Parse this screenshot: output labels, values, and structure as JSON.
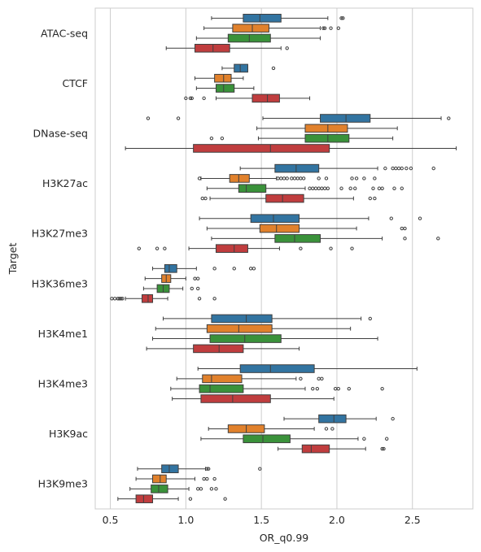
{
  "chart_data": {
    "type": "boxplot",
    "orientation": "horizontal",
    "xlabel": "OR_q0.99",
    "ylabel": "Target",
    "xlim": [
      0.4,
      2.9
    ],
    "xticks": [
      0.5,
      1.0,
      1.5,
      2.0,
      2.5
    ],
    "xtick_labels": [
      "0.5",
      "1.0",
      "1.5",
      "2.0",
      "2.5"
    ],
    "grid": "vertical",
    "legend": "none",
    "series_colors": [
      "#3274a1",
      "#e1812c",
      "#3a923a",
      "#c03d3e"
    ],
    "categories": [
      "ATAC-seq",
      "CTCF",
      "DNase-seq",
      "H3K27ac",
      "H3K27me3",
      "H3K36me3",
      "H3K4me1",
      "H3K4me3",
      "H3K9ac",
      "H3K9me3"
    ],
    "boxes": [
      [
        {
          "whislo": 1.17,
          "q1": 1.38,
          "med": 1.49,
          "q3": 1.63,
          "whishi": 1.94,
          "fliers": [
            2.03,
            2.04
          ]
        },
        {
          "whislo": 1.12,
          "q1": 1.31,
          "med": 1.44,
          "q3": 1.55,
          "whishi": 1.89,
          "fliers": [
            1.91,
            1.92,
            1.96,
            2.01
          ]
        },
        {
          "whislo": 1.07,
          "q1": 1.28,
          "med": 1.42,
          "q3": 1.56,
          "whishi": 1.89,
          "fliers": []
        },
        {
          "whislo": 0.87,
          "q1": 1.06,
          "med": 1.18,
          "q3": 1.29,
          "whishi": 1.63,
          "fliers": [
            1.67
          ]
        }
      ],
      [
        {
          "whislo": 1.24,
          "q1": 1.32,
          "med": 1.36,
          "q3": 1.41,
          "whishi": 1.41,
          "fliers": [
            1.58
          ]
        },
        {
          "whislo": 1.06,
          "q1": 1.19,
          "med": 1.25,
          "q3": 1.3,
          "whishi": 1.38,
          "fliers": []
        },
        {
          "whislo": 1.07,
          "q1": 1.2,
          "med": 1.25,
          "q3": 1.32,
          "whishi": 1.45,
          "fliers": []
        },
        {
          "whislo": 1.2,
          "q1": 1.44,
          "med": 1.54,
          "q3": 1.62,
          "whishi": 1.82,
          "fliers": [
            1.0,
            1.03,
            1.04,
            1.12
          ]
        }
      ],
      [
        {
          "whislo": 1.51,
          "q1": 1.89,
          "med": 2.06,
          "q3": 2.22,
          "whishi": 2.69,
          "fliers": [
            0.75,
            0.95,
            2.74
          ]
        },
        {
          "whislo": 1.47,
          "q1": 1.79,
          "med": 1.94,
          "q3": 2.07,
          "whishi": 2.4,
          "fliers": []
        },
        {
          "whislo": 1.48,
          "q1": 1.79,
          "med": 1.94,
          "q3": 2.08,
          "whishi": 2.37,
          "fliers": [
            1.17,
            1.24
          ]
        },
        {
          "whislo": 0.6,
          "q1": 1.05,
          "med": 1.56,
          "q3": 1.95,
          "whishi": 2.79,
          "fliers": []
        }
      ],
      [
        {
          "whislo": 1.36,
          "q1": 1.59,
          "med": 1.73,
          "q3": 1.88,
          "whishi": 2.27,
          "fliers": [
            2.32,
            2.37,
            2.39,
            2.41,
            2.43,
            2.46,
            2.49,
            2.64
          ]
        },
        {
          "whislo": 1.1,
          "q1": 1.29,
          "med": 1.35,
          "q3": 1.42,
          "whishi": 1.6,
          "fliers": [
            1.09,
            1.61,
            1.63,
            1.65,
            1.67,
            1.7,
            1.72,
            1.74,
            1.76,
            1.78,
            1.88,
            1.93,
            2.1,
            2.13,
            2.18,
            2.25
          ]
        },
        {
          "whislo": 1.14,
          "q1": 1.35,
          "med": 1.4,
          "q3": 1.53,
          "whishi": 1.79,
          "fliers": [
            1.82,
            1.84,
            1.86,
            1.88,
            1.9,
            1.92,
            1.94,
            2.03,
            2.09,
            2.12,
            2.24,
            2.28,
            2.3,
            2.38,
            2.43
          ]
        },
        {
          "whislo": 1.16,
          "q1": 1.53,
          "med": 1.64,
          "q3": 1.78,
          "whishi": 2.11,
          "fliers": [
            1.11,
            1.13,
            2.22,
            2.25
          ]
        }
      ],
      [
        {
          "whislo": 1.09,
          "q1": 1.43,
          "med": 1.58,
          "q3": 1.75,
          "whishi": 2.21,
          "fliers": [
            2.36,
            2.55
          ]
        },
        {
          "whislo": 1.14,
          "q1": 1.49,
          "med": 1.6,
          "q3": 1.75,
          "whishi": 2.13,
          "fliers": [
            2.43,
            2.45
          ]
        },
        {
          "whislo": 1.17,
          "q1": 1.59,
          "med": 1.72,
          "q3": 1.89,
          "whishi": 2.3,
          "fliers": [
            2.45,
            2.67
          ]
        },
        {
          "whislo": 1.02,
          "q1": 1.2,
          "med": 1.32,
          "q3": 1.41,
          "whishi": 1.62,
          "fliers": [
            0.69,
            0.81,
            0.86,
            1.76,
            1.96,
            2.1
          ]
        }
      ],
      [
        {
          "whislo": 0.78,
          "q1": 0.86,
          "med": 0.89,
          "q3": 0.94,
          "whishi": 1.07,
          "fliers": [
            1.19,
            1.32,
            1.43,
            1.45
          ]
        },
        {
          "whislo": 0.73,
          "q1": 0.84,
          "med": 0.87,
          "q3": 0.9,
          "whishi": 1.0,
          "fliers": [
            1.06,
            1.08
          ]
        },
        {
          "whislo": 0.72,
          "q1": 0.81,
          "med": 0.85,
          "q3": 0.89,
          "whishi": 0.98,
          "fliers": [
            1.04,
            1.08
          ]
        },
        {
          "whislo": 0.6,
          "q1": 0.71,
          "med": 0.75,
          "q3": 0.78,
          "whishi": 0.88,
          "fliers": [
            0.51,
            0.53,
            0.55,
            0.56,
            0.57,
            0.58,
            1.09,
            1.19
          ]
        }
      ],
      [
        {
          "whislo": 0.85,
          "q1": 1.17,
          "med": 1.4,
          "q3": 1.57,
          "whishi": 2.16,
          "fliers": [
            2.22
          ]
        },
        {
          "whislo": 0.8,
          "q1": 1.14,
          "med": 1.35,
          "q3": 1.57,
          "whishi": 2.09,
          "fliers": []
        },
        {
          "whislo": 0.78,
          "q1": 1.16,
          "med": 1.39,
          "q3": 1.63,
          "whishi": 2.27,
          "fliers": []
        },
        {
          "whislo": 0.74,
          "q1": 1.05,
          "med": 1.22,
          "q3": 1.38,
          "whishi": 1.75,
          "fliers": []
        }
      ],
      [
        {
          "whislo": 1.08,
          "q1": 1.36,
          "med": 1.56,
          "q3": 1.85,
          "whishi": 2.53,
          "fliers": []
        },
        {
          "whislo": 0.94,
          "q1": 1.11,
          "med": 1.17,
          "q3": 1.37,
          "whishi": 1.73,
          "fliers": [
            1.76,
            1.88,
            1.9
          ]
        },
        {
          "whislo": 0.9,
          "q1": 1.09,
          "med": 1.16,
          "q3": 1.38,
          "whishi": 1.79,
          "fliers": [
            1.84,
            1.87,
            1.99,
            2.01,
            2.08,
            2.3
          ]
        },
        {
          "whislo": 0.91,
          "q1": 1.1,
          "med": 1.31,
          "q3": 1.56,
          "whishi": 1.98,
          "fliers": []
        }
      ],
      [
        {
          "whislo": 1.65,
          "q1": 1.88,
          "med": 1.98,
          "q3": 2.06,
          "whishi": 2.26,
          "fliers": [
            2.37
          ]
        },
        {
          "whislo": 1.15,
          "q1": 1.28,
          "med": 1.4,
          "q3": 1.52,
          "whishi": 1.85,
          "fliers": [
            1.93,
            1.97
          ]
        },
        {
          "whislo": 1.1,
          "q1": 1.38,
          "med": 1.51,
          "q3": 1.69,
          "whishi": 2.14,
          "fliers": [
            2.18,
            2.33
          ]
        },
        {
          "whislo": 1.61,
          "q1": 1.77,
          "med": 1.83,
          "q3": 1.95,
          "whishi": 2.19,
          "fliers": [
            2.3,
            2.31
          ]
        }
      ],
      [
        {
          "whislo": 0.68,
          "q1": 0.84,
          "med": 0.89,
          "q3": 0.95,
          "whishi": 1.13,
          "fliers": [
            1.14,
            1.15,
            1.49
          ]
        },
        {
          "whislo": 0.67,
          "q1": 0.78,
          "med": 0.83,
          "q3": 0.87,
          "whishi": 1.06,
          "fliers": [
            1.12,
            1.14,
            1.19
          ]
        },
        {
          "whislo": 0.63,
          "q1": 0.77,
          "med": 0.82,
          "q3": 0.88,
          "whishi": 1.02,
          "fliers": [
            1.08,
            1.1,
            1.17,
            1.2
          ]
        },
        {
          "whislo": 0.55,
          "q1": 0.67,
          "med": 0.72,
          "q3": 0.78,
          "whishi": 0.95,
          "fliers": [
            1.03,
            1.26
          ]
        }
      ]
    ]
  }
}
